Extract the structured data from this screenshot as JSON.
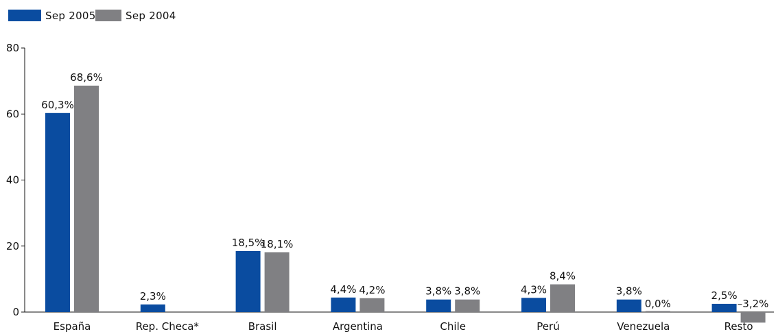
{
  "chart_data": {
    "type": "bar",
    "categories": [
      "España",
      "Rep. Checa*",
      "Brasil",
      "Argentina",
      "Chile",
      "Perú",
      "Venezuela",
      "Resto"
    ],
    "series": [
      {
        "name": "Sep 2005",
        "color": "#0a4ca0",
        "values": [
          60.3,
          2.3,
          18.5,
          4.4,
          3.8,
          4.3,
          3.8,
          2.5
        ],
        "labels": [
          "60,3%",
          "2,3%",
          "18,5%",
          "4,4%",
          "3,8%",
          "4,3%",
          "3,8%",
          "2,5%"
        ]
      },
      {
        "name": "Sep 2004",
        "color": "#808083",
        "values": [
          68.6,
          null,
          18.1,
          4.2,
          3.8,
          8.4,
          0.0,
          -3.2
        ],
        "labels": [
          "68,6%",
          "",
          "18,1%",
          "4,2%",
          "3,8%",
          "8,4%",
          "0,0%",
          "–3,2%"
        ]
      }
    ],
    "yticks": [
      "0",
      "20",
      "40",
      "60",
      "80"
    ],
    "ylim": [
      0,
      80
    ],
    "legend_position": "top-left",
    "grid": false
  }
}
